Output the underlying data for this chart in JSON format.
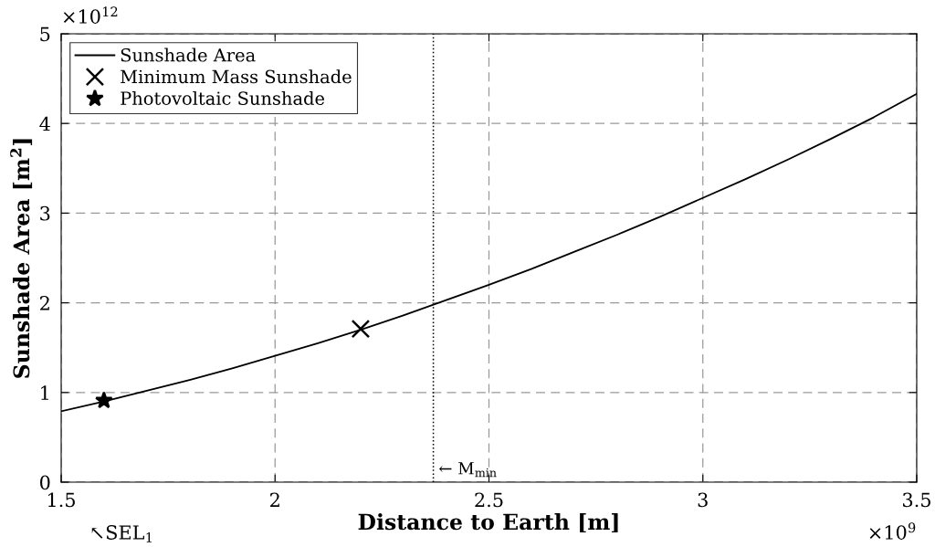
{
  "chart_data": {
    "type": "line",
    "xlabel": "Distance to Earth [m]",
    "ylabel": "Sunshade Area [m$^{2}$]",
    "xlim": [
      1.5,
      3.5
    ],
    "xticks": [
      1.5,
      2,
      2.5,
      3,
      3.5
    ],
    "ylim": [
      0,
      5
    ],
    "yticks": [
      0,
      1,
      2,
      3,
      4,
      5
    ],
    "grid": true,
    "legend": "top left",
    "line_style": "solid",
    "series": [
      {
        "name": "Sunshade Area",
        "color": "#000000",
        "marker": "none",
        "x": [
          1.5,
          1.6,
          1.7,
          1.8,
          1.9,
          2.0,
          2.1,
          2.2,
          2.3,
          2.4,
          2.5,
          2.6,
          2.7,
          2.8,
          2.9,
          3.0,
          3.1,
          3.2,
          3.3,
          3.4,
          3.5
        ],
        "values": [
          0.79,
          0.9,
          1.02,
          1.14,
          1.27,
          1.41,
          1.55,
          1.7,
          1.86,
          2.03,
          2.2,
          2.38,
          2.57,
          2.76,
          2.96,
          3.17,
          3.38,
          3.6,
          3.83,
          4.07,
          4.33
        ]
      },
      {
        "name": "Minimum Mass Sunshade",
        "type": "scatter",
        "color": "#000000",
        "marker": "cross",
        "x": [
          2.2
        ],
        "values": [
          1.71
        ]
      },
      {
        "name": "Photovoltaic Sunshade",
        "type": "scatter",
        "color": "#000000",
        "marker": "star",
        "x": [
          1.6
        ],
        "values": [
          0.91
        ]
      }
    ],
    "ref_lines": [
      {
        "axis": "x",
        "value": 2.37,
        "label": "← M$_{min}$",
        "color": "#000000",
        "line_style": "dotted"
      }
    ],
    "annotations": [
      "×10$^{12}$",
      "×10$^{9}$",
      "↖SEL$_{1}$"
    ]
  }
}
